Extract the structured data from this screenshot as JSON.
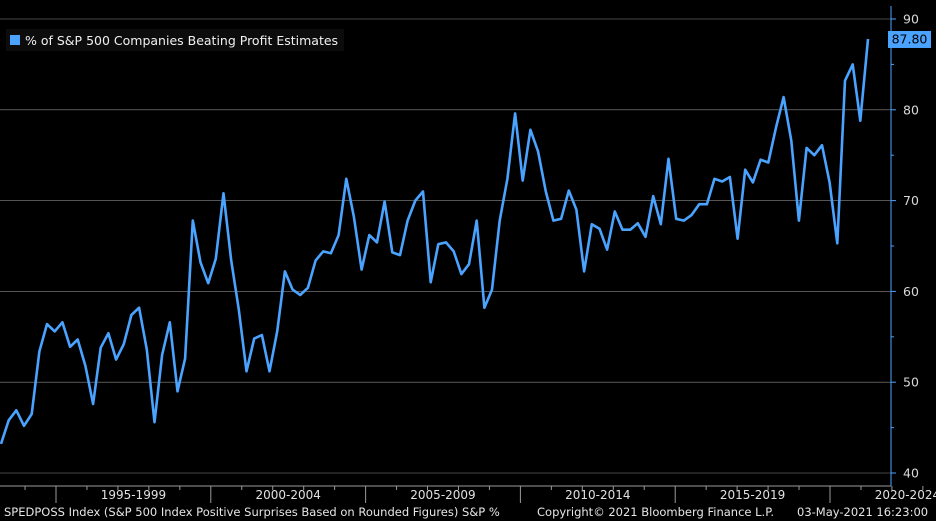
{
  "chart_data": {
    "type": "line",
    "title": "",
    "xlabel": "",
    "ylabel": "",
    "ylim": [
      40,
      90
    ],
    "yticks": [
      40,
      50,
      60,
      70,
      80,
      90
    ],
    "grid": true,
    "legend_position": "top-left",
    "x_tick_labels": [
      "1995-1999",
      "2000-2004",
      "2005-2009",
      "2010-2014",
      "2015-2019",
      "2020-2024"
    ],
    "last_value_label": "87.80",
    "series": [
      {
        "name": "% of S&P 500 Companies Beating Profit Estimates",
        "color": "#4aa3ff",
        "values": [
          43.2,
          45.8,
          46.9,
          45.2,
          46.5,
          53.4,
          56.4,
          55.6,
          56.6,
          53.9,
          54.7,
          51.8,
          47.6,
          53.8,
          55.4,
          52.5,
          54.2,
          57.4,
          58.2,
          53.6,
          45.6,
          53.0,
          56.6,
          49.0,
          52.6,
          67.8,
          63.2,
          60.9,
          63.6,
          70.8,
          63.4,
          58.0,
          51.2,
          54.8,
          55.2,
          51.2,
          55.6,
          62.2,
          60.2,
          59.6,
          60.4,
          63.4,
          64.4,
          64.2,
          66.2,
          72.4,
          68.2,
          62.4,
          66.2,
          65.4,
          69.9,
          64.3,
          64.0,
          67.8,
          70.0,
          71.0,
          61.0,
          65.2,
          65.4,
          64.4,
          61.9,
          63.0,
          67.8,
          58.2,
          60.2,
          67.8,
          72.4,
          79.6,
          72.2,
          77.8,
          75.4,
          71.0,
          67.8,
          68.0,
          71.1,
          69.0,
          62.2,
          67.4,
          66.9,
          64.6,
          68.8,
          66.8,
          66.8,
          67.5,
          66.0,
          70.5,
          67.4,
          74.6,
          68.0,
          67.8,
          68.4,
          69.6,
          69.6,
          72.4,
          72.1,
          72.6,
          65.8,
          73.4,
          72.0,
          74.5,
          74.2,
          78.0,
          81.4,
          76.6,
          67.8,
          75.8,
          75.0,
          76.1,
          72.0,
          65.3,
          83.2,
          85.0,
          78.8,
          87.8
        ]
      }
    ]
  },
  "footer": {
    "left": "SPEDPOSS Index (S&P 500 Index Positive Surprises Based on Rounded Figures) S&P %",
    "middle": "Copyright© 2021 Bloomberg Finance L.P.",
    "right": "03-May-2021 16:23:00"
  }
}
